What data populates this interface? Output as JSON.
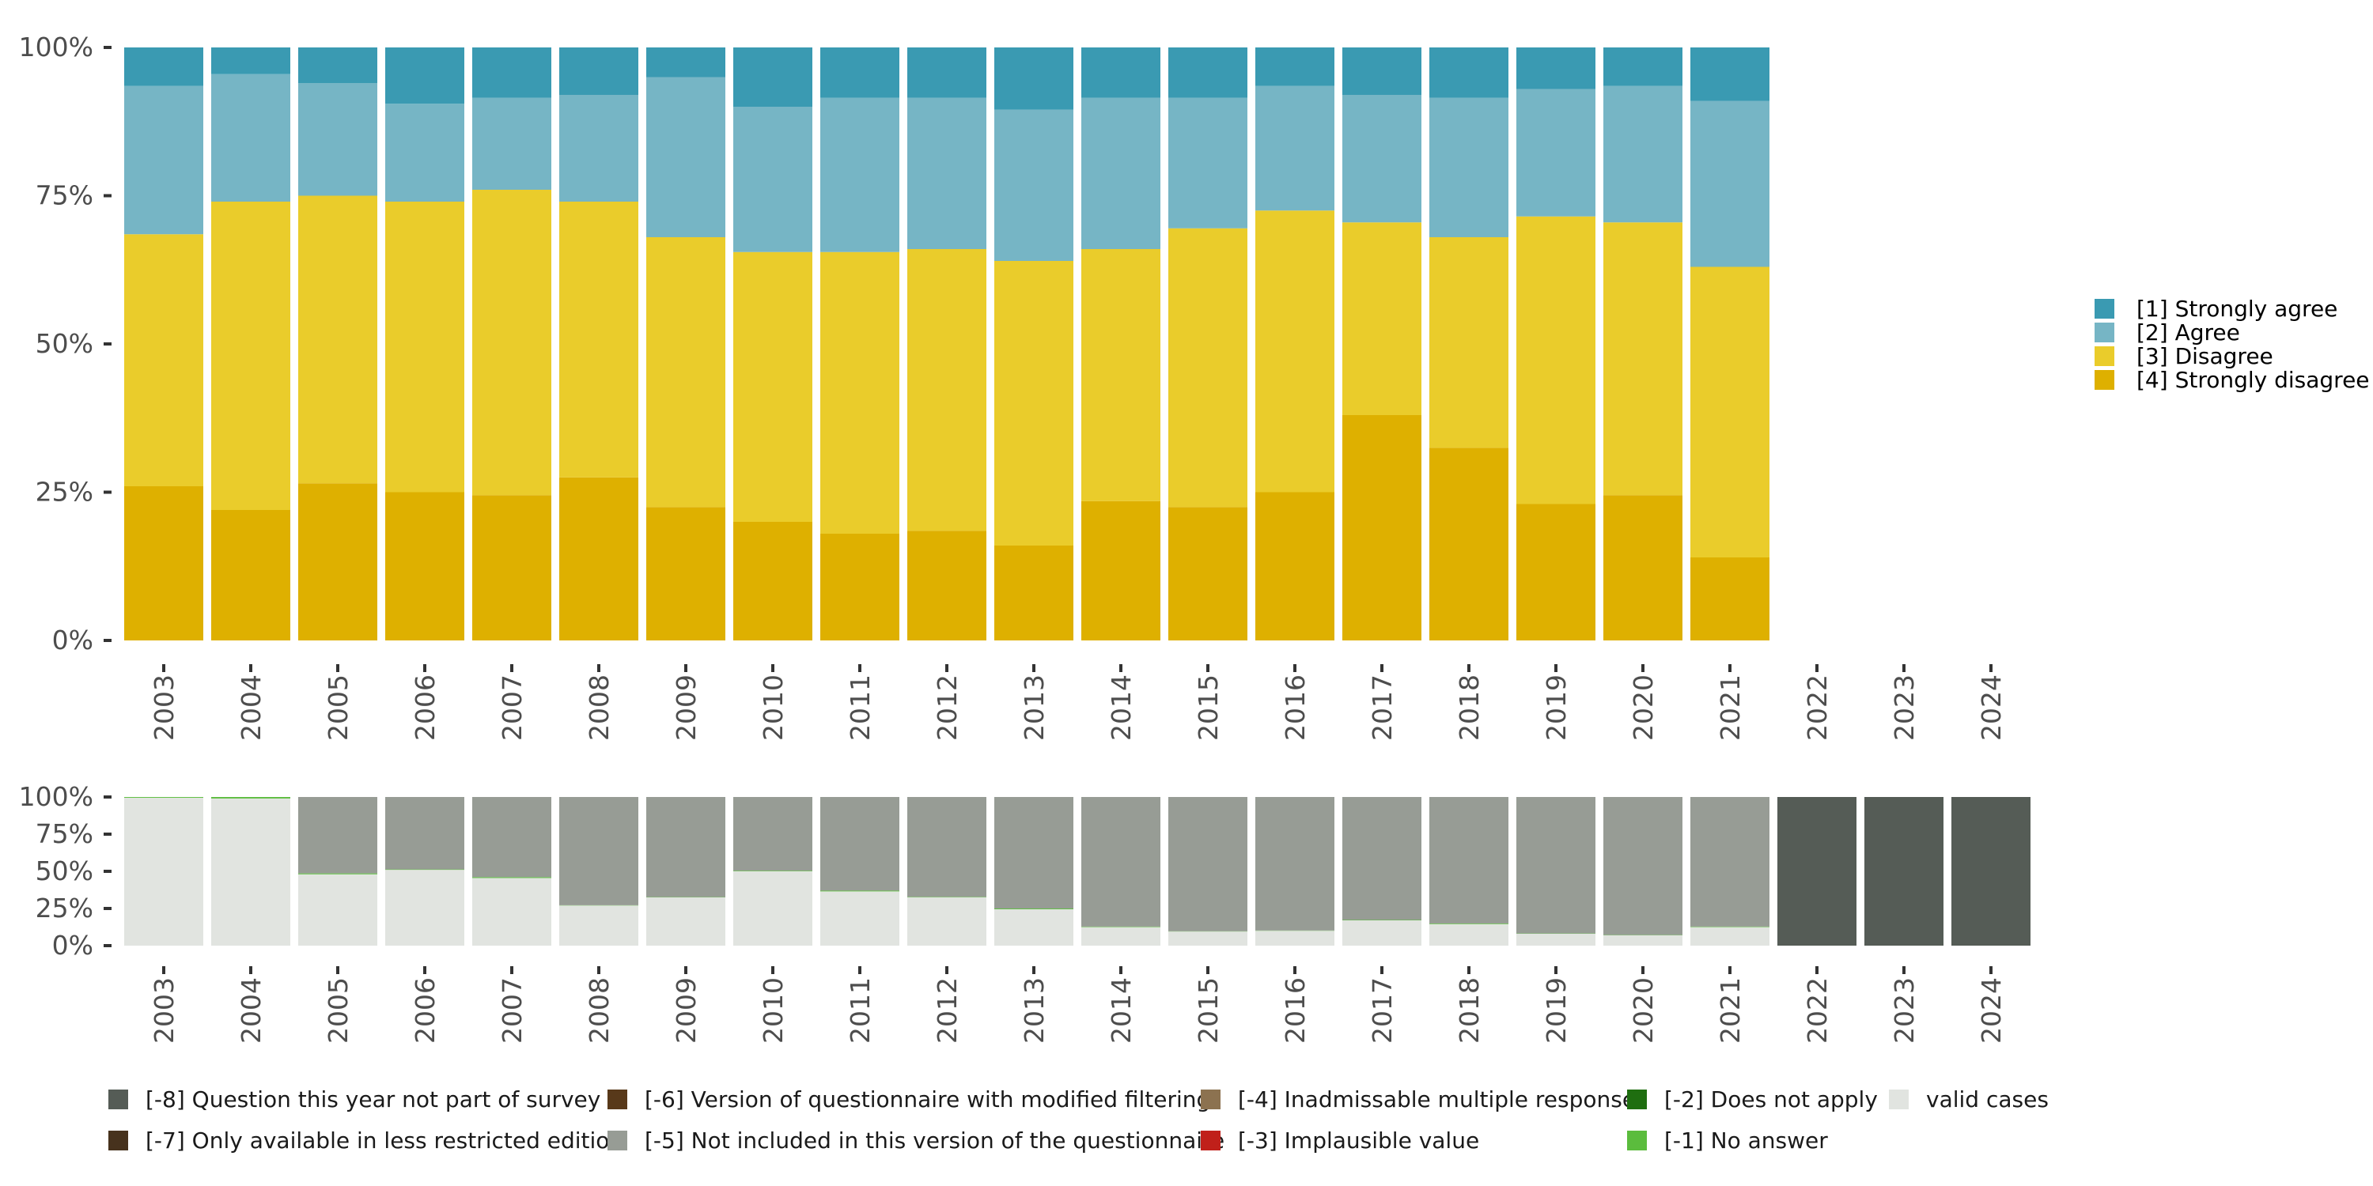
{
  "chart_data": [
    {
      "type": "bar",
      "stacked": true,
      "orientation": "vertical",
      "categories": [
        "2003",
        "2004",
        "2005",
        "2006",
        "2007",
        "2008",
        "2009",
        "2010",
        "2011",
        "2012",
        "2013",
        "2014",
        "2015",
        "2016",
        "2017",
        "2018",
        "2019",
        "2020",
        "2021",
        "2022",
        "2023",
        "2024"
      ],
      "y_ticks": [
        "0%",
        "25%",
        "50%",
        "75%",
        "100%"
      ],
      "ylim": [
        0,
        100
      ],
      "legend_position": "right",
      "series": [
        {
          "name": "[4] Strongly disagree",
          "color": "#DEB000",
          "values": [
            26,
            22,
            26.5,
            25,
            24.5,
            27.5,
            22.5,
            20,
            18,
            18.5,
            16,
            23.5,
            22.5,
            25,
            38,
            32.5,
            23,
            24.5,
            14,
            0,
            0,
            0
          ]
        },
        {
          "name": "[3] Disagree",
          "color": "#EACC2B",
          "values": [
            42.5,
            52,
            48.5,
            49,
            51.5,
            46.5,
            45.5,
            45.5,
            47.5,
            47.5,
            48,
            42.5,
            47,
            47.5,
            32.5,
            35.5,
            48.5,
            46,
            49,
            0,
            0,
            0
          ]
        },
        {
          "name": "[2] Agree",
          "color": "#76B5C5",
          "values": [
            25,
            21.5,
            19,
            16.5,
            15.5,
            18,
            27,
            24.5,
            26,
            25.5,
            25.5,
            25.5,
            22,
            21,
            21.5,
            23.5,
            21.5,
            23,
            28,
            0,
            0,
            0
          ]
        },
        {
          "name": "[1] Strongly agree",
          "color": "#3A9AB2",
          "values": [
            6.5,
            4.5,
            6,
            9.5,
            8.5,
            8,
            5,
            10,
            8.5,
            8.5,
            10.5,
            8.5,
            8.5,
            6.5,
            8,
            8.5,
            7,
            6.5,
            9,
            0,
            0,
            0
          ]
        }
      ]
    },
    {
      "type": "bar",
      "stacked": true,
      "orientation": "vertical",
      "categories": [
        "2003",
        "2004",
        "2005",
        "2006",
        "2007",
        "2008",
        "2009",
        "2010",
        "2011",
        "2012",
        "2013",
        "2014",
        "2015",
        "2016",
        "2017",
        "2018",
        "2019",
        "2020",
        "2021",
        "2022",
        "2023",
        "2024"
      ],
      "y_ticks": [
        "0%",
        "25%",
        "50%",
        "75%",
        "100%"
      ],
      "ylim": [
        0,
        100
      ],
      "legend_position": "bottom",
      "series": [
        {
          "name": "valid cases",
          "color": "#E1E4E0",
          "values": [
            99.5,
            99,
            48,
            51,
            45.5,
            27,
            32.5,
            50,
            36.5,
            32.5,
            24.5,
            12.5,
            9.5,
            10,
            17,
            14.5,
            8,
            7,
            12.5,
            0,
            0,
            0
          ]
        },
        {
          "name": "[-1] No answer",
          "color": "#5BBC3D",
          "values": [
            0.5,
            1,
            0.6,
            0.3,
            0.6,
            0.2,
            0.2,
            0.4,
            0.5,
            0.3,
            0.5,
            0.3,
            0.2,
            0.2,
            0.3,
            0.4,
            0.2,
            0.2,
            0.3,
            0,
            0,
            0
          ]
        },
        {
          "name": "[-2] Does not apply",
          "color": "#1F6E10",
          "values": [
            0,
            0,
            0,
            0,
            0,
            0,
            0,
            0,
            0,
            0,
            0,
            0,
            0,
            0,
            0,
            0,
            0,
            0,
            0,
            0,
            0,
            0
          ]
        },
        {
          "name": "[-3] Implausible value",
          "color": "#C0201A",
          "values": [
            0,
            0,
            0,
            0,
            0,
            0,
            0,
            0,
            0,
            0,
            0,
            0,
            0,
            0,
            0,
            0,
            0,
            0,
            0,
            0,
            0,
            0
          ]
        },
        {
          "name": "[-4] Inadmissable multiple response",
          "color": "#8C7250",
          "values": [
            0,
            0,
            0,
            0,
            0,
            0,
            0,
            0,
            0,
            0,
            0,
            0,
            0,
            0,
            0,
            0,
            0,
            0,
            0,
            0,
            0,
            0
          ]
        },
        {
          "name": "[-5] Not included in this version of the questionnaire",
          "color": "#979C95",
          "values": [
            0,
            0,
            51.4,
            48.7,
            53.9,
            72.8,
            67.3,
            49.6,
            63,
            67.2,
            75,
            87.2,
            90.3,
            89.8,
            82.7,
            85.1,
            91.8,
            92.8,
            87.2,
            0,
            0,
            0
          ]
        },
        {
          "name": "[-6] Version of questionnaire with modified filtering",
          "color": "#58391A",
          "values": [
            0,
            0,
            0,
            0,
            0,
            0,
            0,
            0,
            0,
            0,
            0,
            0,
            0,
            0,
            0,
            0,
            0,
            0,
            0,
            0,
            0,
            0
          ]
        },
        {
          "name": "[-7] Only available in less restricted edition",
          "color": "#47321D",
          "values": [
            0,
            0,
            0,
            0,
            0,
            0,
            0,
            0,
            0,
            0,
            0,
            0,
            0,
            0,
            0,
            0,
            0,
            0,
            0,
            0,
            0,
            0
          ]
        },
        {
          "name": "[-8] Question this year not part of survey",
          "color": "#555C56",
          "values": [
            0,
            0,
            0,
            0,
            0,
            0,
            0,
            0,
            0,
            0,
            0,
            0,
            0,
            0,
            0,
            0,
            0,
            0,
            0,
            100,
            100,
            100
          ]
        }
      ]
    }
  ]
}
